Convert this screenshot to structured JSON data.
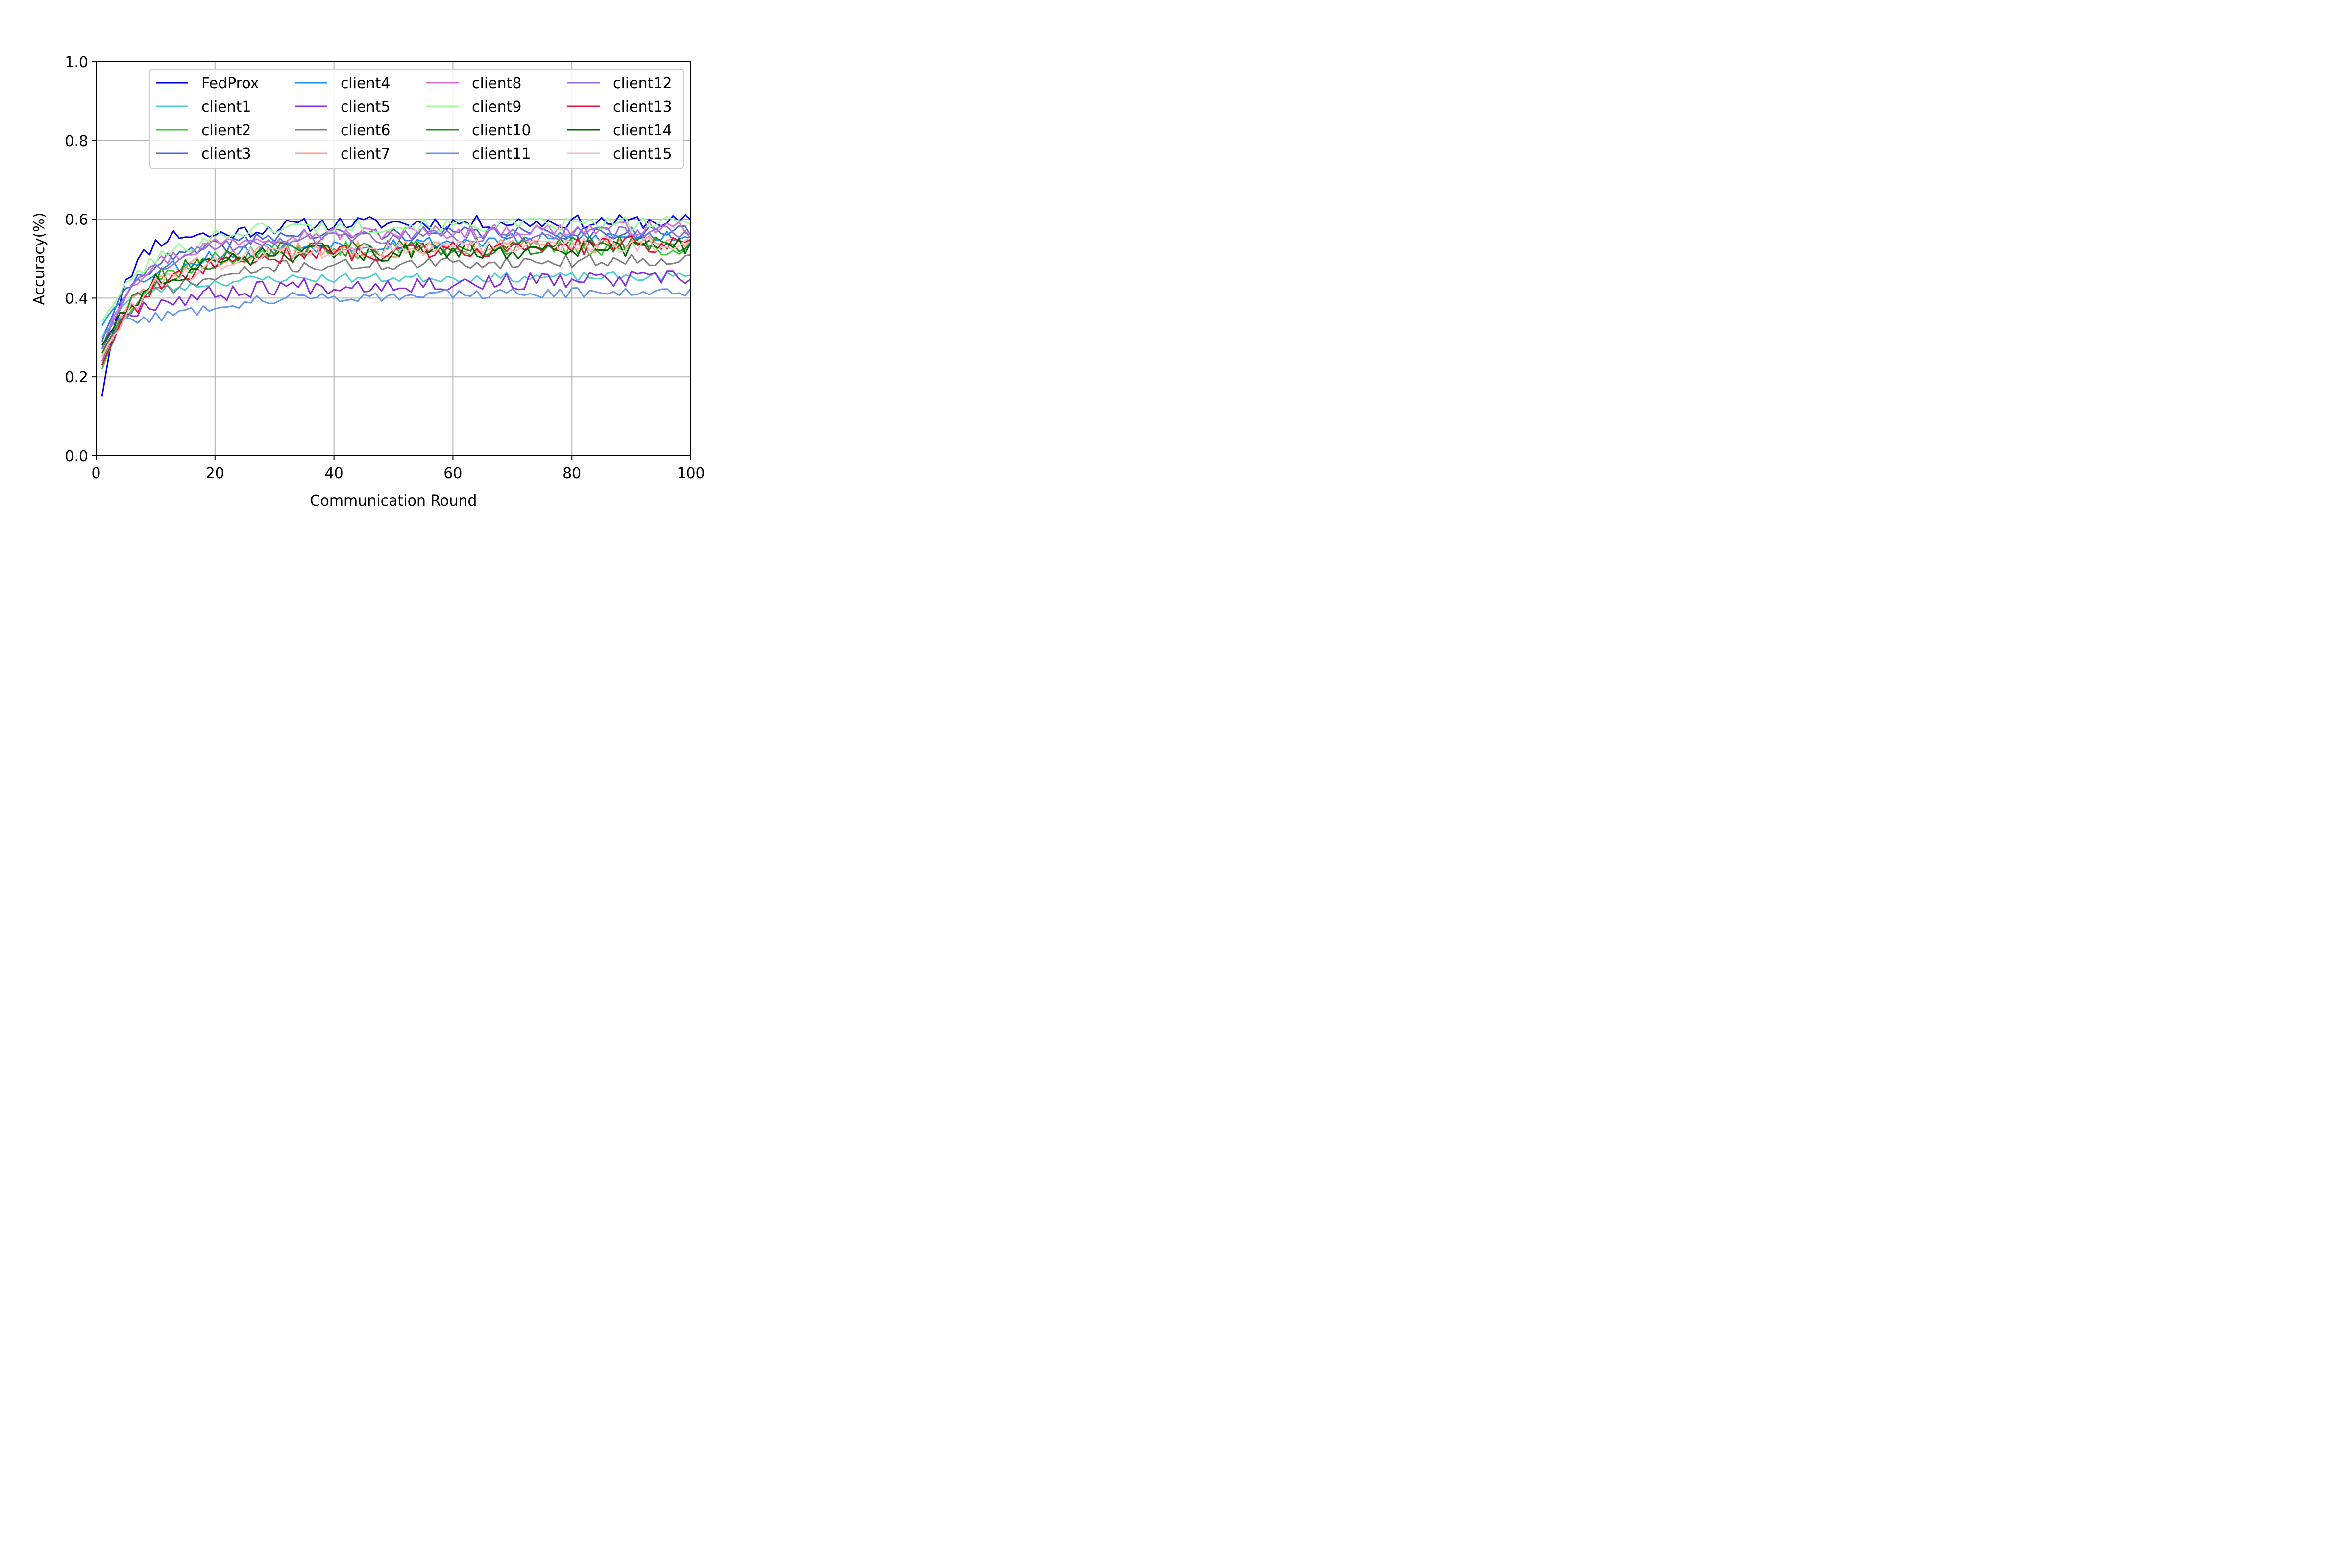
{
  "chart_data": {
    "type": "line",
    "title": "",
    "xlabel": "Communication Round",
    "ylabel": "Accuracy(%)",
    "xlim": [
      0,
      100
    ],
    "ylim": [
      0.0,
      1.0
    ],
    "xticks": [
      0,
      20,
      40,
      60,
      80,
      100
    ],
    "yticks": [
      0.0,
      0.2,
      0.4,
      0.6,
      0.8,
      1.0
    ],
    "xtick_labels": [
      "0",
      "20",
      "40",
      "60",
      "80",
      "100"
    ],
    "ytick_labels": [
      "0.0",
      "0.2",
      "0.4",
      "0.6",
      "0.8",
      "1.0"
    ],
    "grid": true,
    "legend": {
      "placement": "top-center",
      "columns": 4
    },
    "series": [
      {
        "name": "FedProx",
        "color": "#0000EE",
        "keypoints": [
          [
            1,
            0.15
          ],
          [
            2,
            0.24
          ],
          [
            3,
            0.33
          ],
          [
            5,
            0.45
          ],
          [
            8,
            0.51
          ],
          [
            10,
            0.54
          ],
          [
            13,
            0.56
          ],
          [
            20,
            0.56
          ],
          [
            30,
            0.58
          ],
          [
            40,
            0.59
          ],
          [
            100,
            0.595
          ]
        ],
        "noise": 0.018,
        "seed": 11
      },
      {
        "name": "client1",
        "color": "#48D1CC",
        "keypoints": [
          [
            1,
            0.3
          ],
          [
            3,
            0.36
          ],
          [
            6,
            0.4
          ],
          [
            10,
            0.42
          ],
          [
            20,
            0.44
          ],
          [
            30,
            0.45
          ],
          [
            100,
            0.455
          ]
        ],
        "noise": 0.012,
        "seed": 23
      },
      {
        "name": "client2",
        "color": "#32CD32",
        "keypoints": [
          [
            1,
            0.22
          ],
          [
            3,
            0.3
          ],
          [
            6,
            0.39
          ],
          [
            10,
            0.45
          ],
          [
            20,
            0.5
          ],
          [
            30,
            0.52
          ],
          [
            100,
            0.53
          ]
        ],
        "noise": 0.022,
        "seed": 37
      },
      {
        "name": "client3",
        "color": "#4169E1",
        "keypoints": [
          [
            1,
            0.29
          ],
          [
            3,
            0.37
          ],
          [
            6,
            0.44
          ],
          [
            10,
            0.49
          ],
          [
            20,
            0.53
          ],
          [
            30,
            0.56
          ],
          [
            100,
            0.57
          ]
        ],
        "noise": 0.018,
        "seed": 41
      },
      {
        "name": "client4",
        "color": "#1E90FF",
        "keypoints": [
          [
            1,
            0.33
          ],
          [
            3,
            0.38
          ],
          [
            6,
            0.43
          ],
          [
            10,
            0.47
          ],
          [
            20,
            0.51
          ],
          [
            30,
            0.53
          ],
          [
            100,
            0.56
          ]
        ],
        "noise": 0.018,
        "seed": 53
      },
      {
        "name": "client5",
        "color": "#8A2BE2",
        "keypoints": [
          [
            1,
            0.27
          ],
          [
            3,
            0.33
          ],
          [
            6,
            0.37
          ],
          [
            10,
            0.39
          ],
          [
            20,
            0.41
          ],
          [
            30,
            0.43
          ],
          [
            100,
            0.45
          ]
        ],
        "noise": 0.022,
        "seed": 67
      },
      {
        "name": "client6",
        "color": "#808080",
        "keypoints": [
          [
            1,
            0.24
          ],
          [
            3,
            0.31
          ],
          [
            6,
            0.37
          ],
          [
            10,
            0.42
          ],
          [
            20,
            0.45
          ],
          [
            30,
            0.48
          ],
          [
            100,
            0.5
          ]
        ],
        "noise": 0.016,
        "seed": 71
      },
      {
        "name": "client7",
        "color": "#FFA07A",
        "keypoints": [
          [
            1,
            0.25
          ],
          [
            3,
            0.32
          ],
          [
            6,
            0.39
          ],
          [
            10,
            0.44
          ],
          [
            20,
            0.5
          ],
          [
            30,
            0.52
          ],
          [
            100,
            0.54
          ]
        ],
        "noise": 0.022,
        "seed": 83
      },
      {
        "name": "client8",
        "color": "#DA70D6",
        "keypoints": [
          [
            1,
            0.27
          ],
          [
            3,
            0.36
          ],
          [
            6,
            0.44
          ],
          [
            10,
            0.49
          ],
          [
            20,
            0.54
          ],
          [
            30,
            0.56
          ],
          [
            100,
            0.58
          ]
        ],
        "noise": 0.018,
        "seed": 97
      },
      {
        "name": "client9",
        "color": "#98FB98",
        "keypoints": [
          [
            1,
            0.34
          ],
          [
            3,
            0.39
          ],
          [
            6,
            0.45
          ],
          [
            10,
            0.5
          ],
          [
            20,
            0.56
          ],
          [
            30,
            0.58
          ],
          [
            100,
            0.59
          ]
        ],
        "noise": 0.018,
        "seed": 101
      },
      {
        "name": "client10",
        "color": "#228B22",
        "keypoints": [
          [
            1,
            0.26
          ],
          [
            3,
            0.32
          ],
          [
            6,
            0.39
          ],
          [
            10,
            0.45
          ],
          [
            20,
            0.5
          ],
          [
            30,
            0.52
          ],
          [
            100,
            0.54
          ]
        ],
        "noise": 0.022,
        "seed": 113
      },
      {
        "name": "client11",
        "color": "#6495ED",
        "keypoints": [
          [
            1,
            0.3
          ],
          [
            3,
            0.34
          ],
          [
            6,
            0.35
          ],
          [
            10,
            0.35
          ],
          [
            20,
            0.38
          ],
          [
            30,
            0.4
          ],
          [
            100,
            0.42
          ]
        ],
        "noise": 0.014,
        "seed": 127
      },
      {
        "name": "client12",
        "color": "#9370DB",
        "keypoints": [
          [
            1,
            0.27
          ],
          [
            3,
            0.35
          ],
          [
            6,
            0.43
          ],
          [
            10,
            0.48
          ],
          [
            20,
            0.53
          ],
          [
            30,
            0.55
          ],
          [
            100,
            0.57
          ]
        ],
        "noise": 0.018,
        "seed": 131
      },
      {
        "name": "client13",
        "color": "#DC143C",
        "keypoints": [
          [
            1,
            0.23
          ],
          [
            3,
            0.3
          ],
          [
            6,
            0.37
          ],
          [
            10,
            0.43
          ],
          [
            20,
            0.48
          ],
          [
            30,
            0.51
          ],
          [
            100,
            0.54
          ]
        ],
        "noise": 0.022,
        "seed": 139
      },
      {
        "name": "client14",
        "color": "#006400",
        "keypoints": [
          [
            1,
            0.28
          ],
          [
            3,
            0.33
          ],
          [
            6,
            0.39
          ],
          [
            10,
            0.44
          ],
          [
            20,
            0.49
          ],
          [
            30,
            0.51
          ],
          [
            100,
            0.53
          ]
        ],
        "noise": 0.022,
        "seed": 151
      },
      {
        "name": "client15",
        "color": "#FFB6C1",
        "keypoints": [
          [
            1,
            0.25
          ],
          [
            3,
            0.31
          ],
          [
            6,
            0.38
          ],
          [
            10,
            0.43
          ],
          [
            20,
            0.49
          ],
          [
            30,
            0.52
          ],
          [
            100,
            0.54
          ]
        ],
        "noise": 0.022,
        "seed": 163
      }
    ]
  }
}
